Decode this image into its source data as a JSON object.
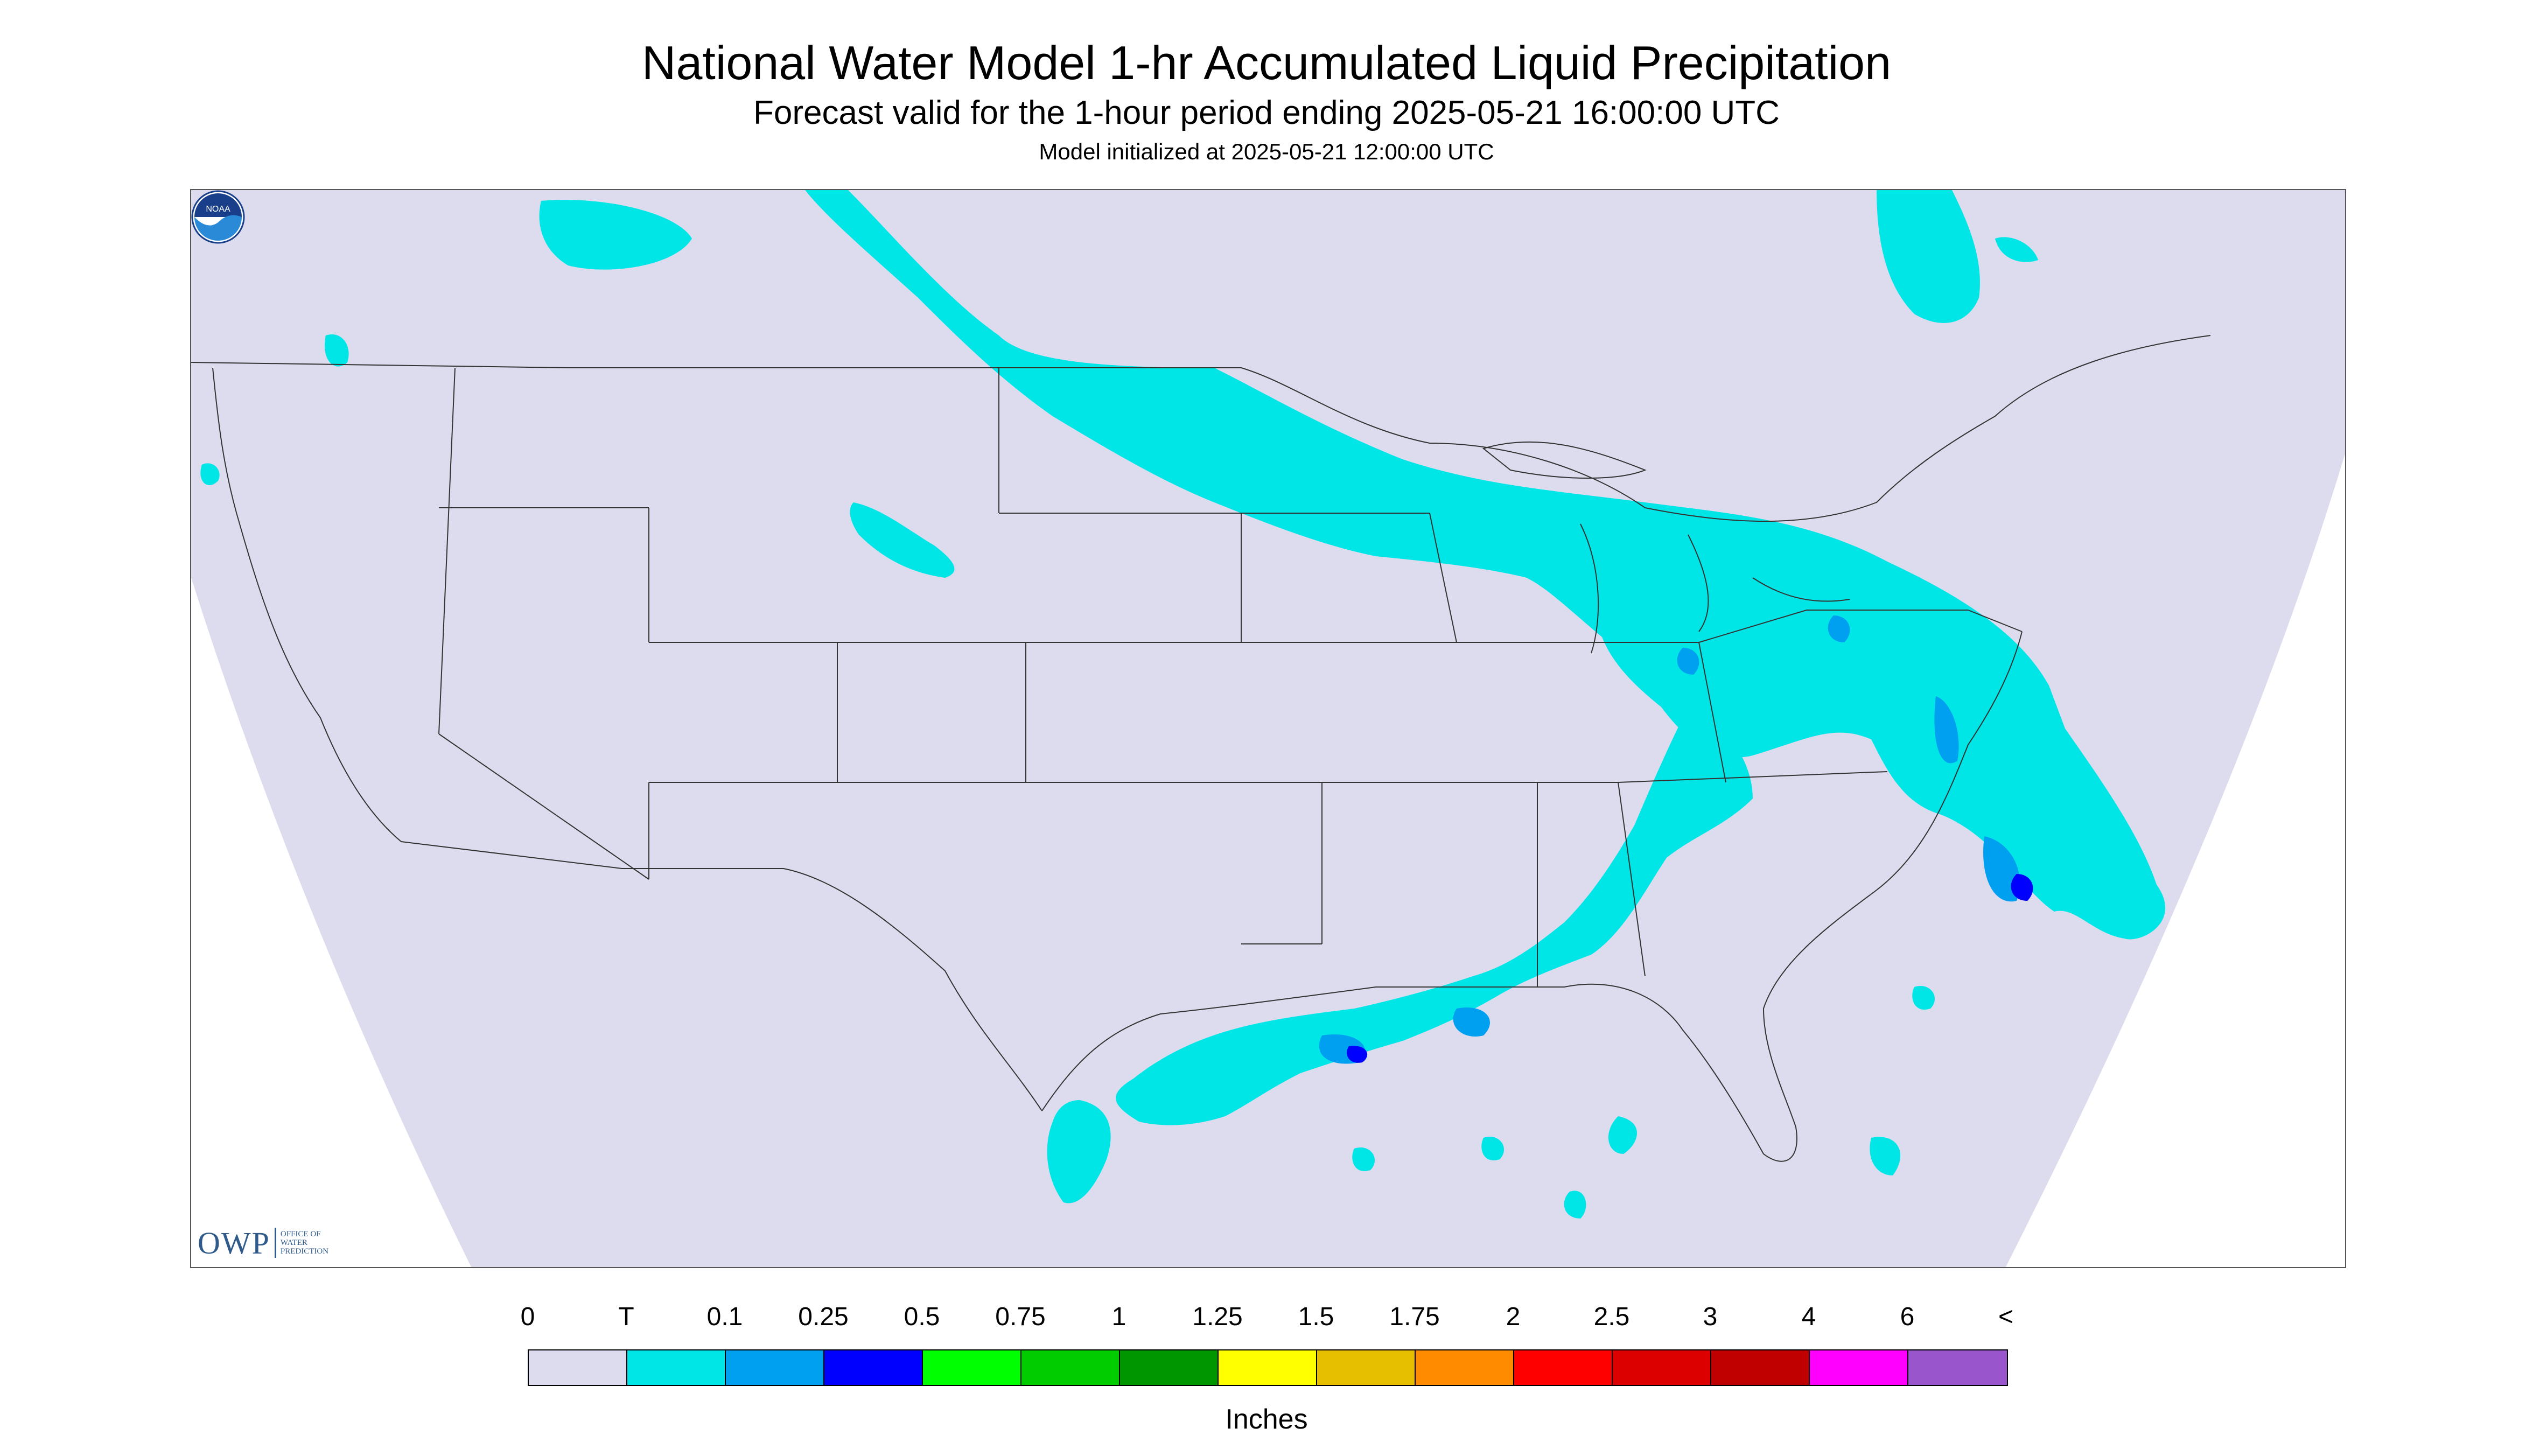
{
  "header": {
    "title": "National Water Model 1-hr Accumulated Liquid Precipitation",
    "subtitle": "Forecast valid for the 1-hour period ending 2025-05-21 16:00:00 UTC",
    "init": "Model initialized at 2025-05-21 12:00:00 UTC"
  },
  "logos": {
    "owp": {
      "main": "OWP",
      "line1": "OFFICE OF",
      "line2": "WATER",
      "line3": "PREDICTION"
    },
    "noaa": {
      "text": "NOAA"
    }
  },
  "legend": {
    "labels": [
      "0",
      "T",
      "0.1",
      "0.25",
      "0.5",
      "0.75",
      "1",
      "1.25",
      "1.5",
      "1.75",
      "2",
      "2.5",
      "3",
      "4",
      "6",
      "<"
    ],
    "colors": [
      "#dcdcee",
      "#00e6e6",
      "#00a0f0",
      "#0000ff",
      "#00ff00",
      "#00cc00",
      "#009600",
      "#ffff00",
      "#e6bf00",
      "#ff8c00",
      "#ff0000",
      "#dc0000",
      "#c00000",
      "#ff00ff",
      "#9955cc"
    ],
    "units": "Inches"
  },
  "map": {
    "domain_color": "#dcdcee",
    "outside_color": "#ffffff",
    "boundary_color": "#333333",
    "precip_trace_color": "#00e6e6",
    "precip_01_color": "#00a0f0",
    "precip_025_color": "#0000ff"
  }
}
